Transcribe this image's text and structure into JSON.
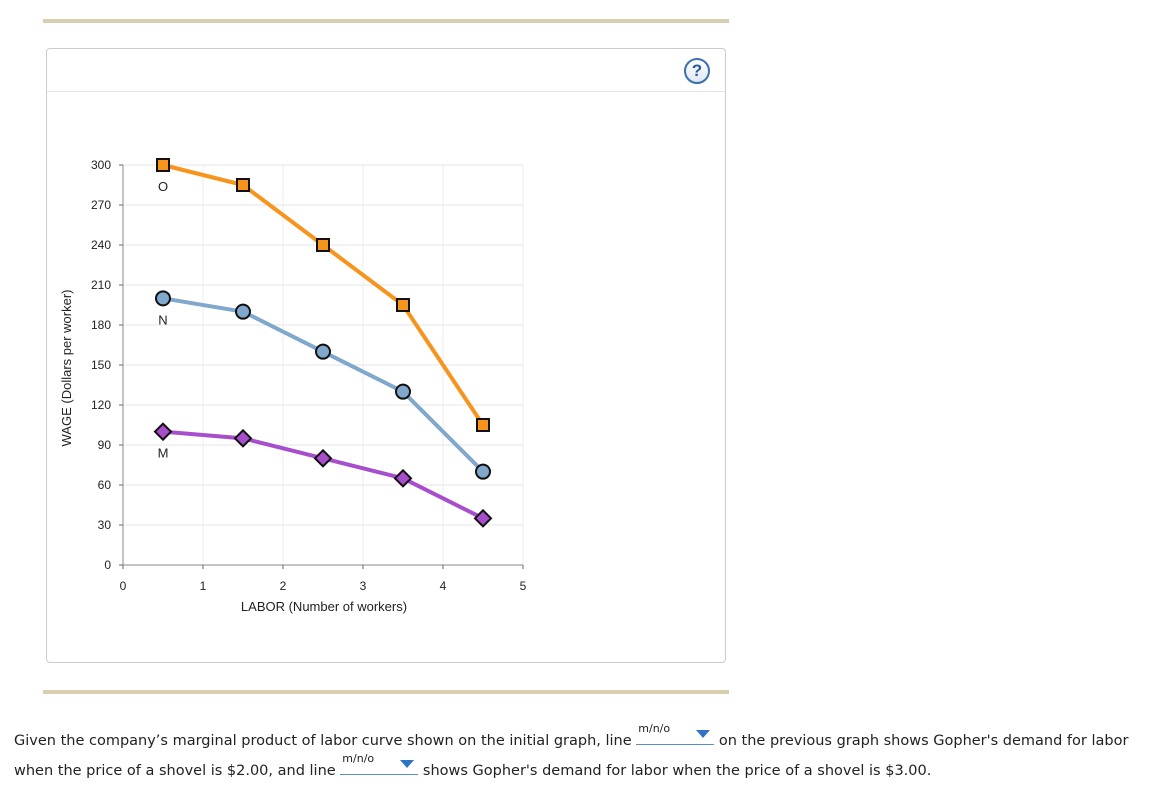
{
  "help_icon": "?",
  "chart_data": {
    "type": "line",
    "ylabel": "WAGE (Dollars per worker)",
    "xlabel": "LABOR (Number of workers)",
    "xlim": [
      0,
      5
    ],
    "ylim": [
      0,
      300
    ],
    "x_ticks": [
      0,
      1,
      2,
      3,
      4,
      5
    ],
    "y_ticks": [
      0,
      30,
      60,
      90,
      120,
      150,
      180,
      210,
      240,
      270,
      300
    ],
    "grid": true,
    "series": [
      {
        "name": "O",
        "color": "#f7941d",
        "marker": "square",
        "marker_color": "#f7941d",
        "x": [
          0.5,
          1.5,
          2.5,
          3.5,
          4.5
        ],
        "values": [
          300,
          285,
          240,
          195,
          105
        ]
      },
      {
        "name": "N",
        "color": "#7fa8cc",
        "marker": "circle",
        "marker_color": "#7fa8cc",
        "x": [
          0.5,
          1.5,
          2.5,
          3.5,
          4.5
        ],
        "values": [
          200,
          190,
          160,
          130,
          70
        ]
      },
      {
        "name": "M",
        "color": "#a64ecb",
        "marker": "diamond",
        "marker_color": "#a64ecb",
        "x": [
          0.5,
          1.5,
          2.5,
          3.5,
          4.5
        ],
        "values": [
          100,
          95,
          80,
          65,
          35
        ]
      }
    ]
  },
  "question": {
    "part1": "Given the company’s marginal product of labor curve shown on the initial graph, line",
    "dropdown1_value": "m/n/o",
    "part2": "on the previous graph shows Gopher's demand for labor when the price of a shovel is $2.00, and line",
    "dropdown2_value": "m/n/o",
    "part3": "shows Gopher's demand for labor when the price of a shovel is $3.00."
  }
}
